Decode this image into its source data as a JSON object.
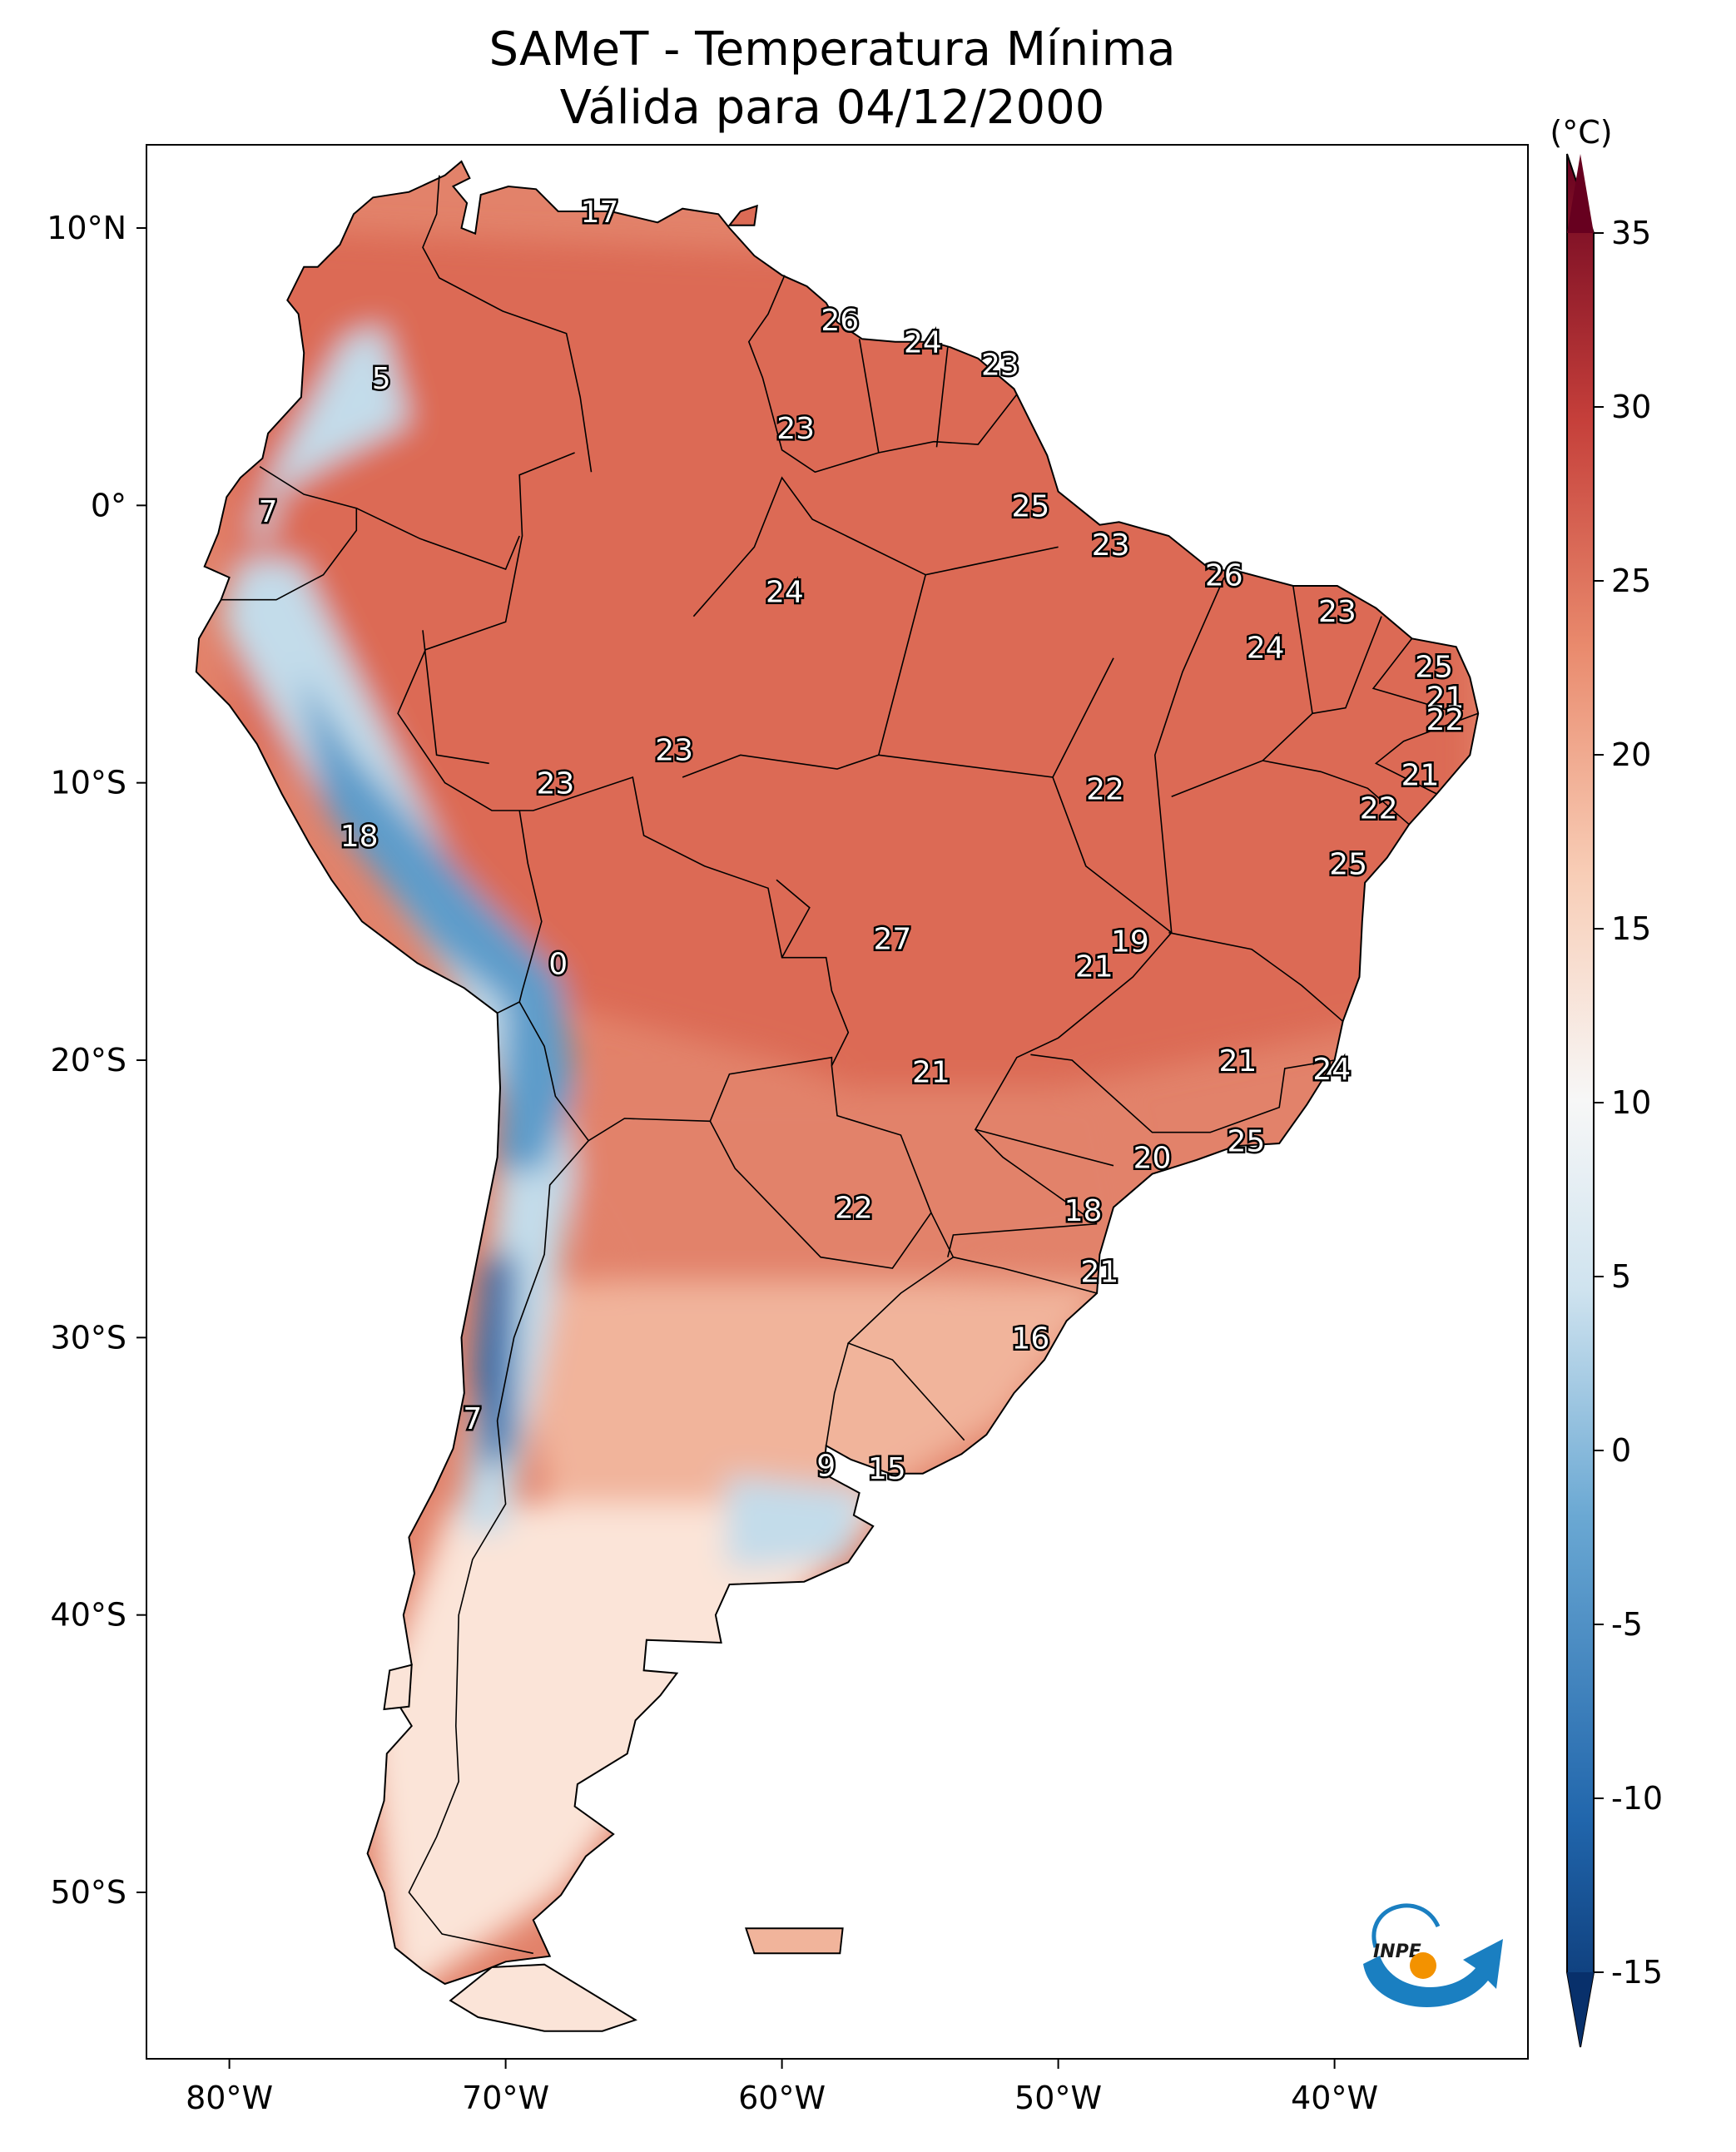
{
  "title": {
    "line1": "SAMeT - Temperatura Mínima",
    "line2": "Válida para 04/12/2000"
  },
  "map": {
    "lon_range": [
      -83,
      -33
    ],
    "lat_range": [
      -56,
      13
    ],
    "x_ticks": [
      {
        "lon": -80,
        "label": "80°W"
      },
      {
        "lon": -70,
        "label": "70°W"
      },
      {
        "lon": -60,
        "label": "60°W"
      },
      {
        "lon": -50,
        "label": "50°W"
      },
      {
        "lon": -40,
        "label": "40°W"
      }
    ],
    "y_ticks": [
      {
        "lat": 10,
        "label": "10°N"
      },
      {
        "lat": 0,
        "label": "0°"
      },
      {
        "lat": -10,
        "label": "10°S"
      },
      {
        "lat": -20,
        "label": "20°S"
      },
      {
        "lat": -30,
        "label": "30°S"
      },
      {
        "lat": -40,
        "label": "40°S"
      },
      {
        "lat": -50,
        "label": "50°S"
      }
    ],
    "station_labels": [
      {
        "lon": -66.6,
        "lat": 10.6,
        "value": "17"
      },
      {
        "lon": -57.9,
        "lat": 6.7,
        "value": "26"
      },
      {
        "lon": -54.9,
        "lat": 5.9,
        "value": "24"
      },
      {
        "lon": -52.1,
        "lat": 5.1,
        "value": "23"
      },
      {
        "lon": -74.5,
        "lat": 4.6,
        "value": "5"
      },
      {
        "lon": -59.5,
        "lat": 2.8,
        "value": "23"
      },
      {
        "lon": -51.0,
        "lat": 0.0,
        "value": "25"
      },
      {
        "lon": -78.6,
        "lat": -0.2,
        "value": "7"
      },
      {
        "lon": -48.1,
        "lat": -1.4,
        "value": "23"
      },
      {
        "lon": -44.0,
        "lat": -2.5,
        "value": "26"
      },
      {
        "lon": -59.9,
        "lat": -3.1,
        "value": "24"
      },
      {
        "lon": -39.9,
        "lat": -3.8,
        "value": "23"
      },
      {
        "lon": -42.5,
        "lat": -5.1,
        "value": "24"
      },
      {
        "lon": -36.4,
        "lat": -5.8,
        "value": "25"
      },
      {
        "lon": -36.0,
        "lat": -6.9,
        "value": "21"
      },
      {
        "lon": -36.0,
        "lat": -7.7,
        "value": "22"
      },
      {
        "lon": -63.9,
        "lat": -8.8,
        "value": "23"
      },
      {
        "lon": -36.9,
        "lat": -9.7,
        "value": "21"
      },
      {
        "lon": -68.2,
        "lat": -10.0,
        "value": "23"
      },
      {
        "lon": -48.3,
        "lat": -10.2,
        "value": "22"
      },
      {
        "lon": -38.4,
        "lat": -10.9,
        "value": "22"
      },
      {
        "lon": -75.3,
        "lat": -11.9,
        "value": "18"
      },
      {
        "lon": -39.5,
        "lat": -12.9,
        "value": "25"
      },
      {
        "lon": -56.0,
        "lat": -15.6,
        "value": "27"
      },
      {
        "lon": -47.4,
        "lat": -15.7,
        "value": "19"
      },
      {
        "lon": -48.7,
        "lat": -16.6,
        "value": "21"
      },
      {
        "lon": -68.1,
        "lat": -16.5,
        "value": "0"
      },
      {
        "lon": -43.5,
        "lat": -20.0,
        "value": "21"
      },
      {
        "lon": -54.6,
        "lat": -20.4,
        "value": "21"
      },
      {
        "lon": -40.1,
        "lat": -20.3,
        "value": "24"
      },
      {
        "lon": -43.2,
        "lat": -22.9,
        "value": "25"
      },
      {
        "lon": -46.6,
        "lat": -23.5,
        "value": "20"
      },
      {
        "lon": -57.4,
        "lat": -25.3,
        "value": "22"
      },
      {
        "lon": -49.1,
        "lat": -25.4,
        "value": "18"
      },
      {
        "lon": -48.5,
        "lat": -27.6,
        "value": "21"
      },
      {
        "lon": -51.0,
        "lat": -30.0,
        "value": "16"
      },
      {
        "lon": -71.2,
        "lat": -32.9,
        "value": "7"
      },
      {
        "lon": -58.4,
        "lat": -34.6,
        "value": "9"
      },
      {
        "lon": -56.2,
        "lat": -34.7,
        "value": "15"
      }
    ]
  },
  "colorbar": {
    "unit": "(°C)",
    "min": -15,
    "max": 35,
    "ticks": [
      {
        "value": 35,
        "label": "35"
      },
      {
        "value": 30,
        "label": "30"
      },
      {
        "value": 25,
        "label": "25"
      },
      {
        "value": 20,
        "label": "20"
      },
      {
        "value": 15,
        "label": "15"
      },
      {
        "value": 10,
        "label": "10"
      },
      {
        "value": 5,
        "label": "5"
      },
      {
        "value": 0,
        "label": "0"
      },
      {
        "value": -5,
        "label": "-5"
      },
      {
        "value": -10,
        "label": "-10"
      },
      {
        "value": -15,
        "label": "-15"
      }
    ],
    "colors": {
      "lowest": "#08306b",
      "low": "#2166ac",
      "cool": "#92c5de",
      "neutral": "#f7f7f7",
      "warm": "#f4a582",
      "high": "#d6604d",
      "highest": "#67001f"
    }
  },
  "logo": {
    "text": "INPE",
    "colors": {
      "blue": "#1a7fc1",
      "orange": "#f39200"
    }
  },
  "land_colors": {
    "tropical": "#dc6b55",
    "warm": "#e2826a",
    "mild": "#f1b49b",
    "cool": "#fbe4d8",
    "cold": "#c3dcea",
    "andes": "#5d9cca",
    "high_andes": "#2e6fae"
  }
}
